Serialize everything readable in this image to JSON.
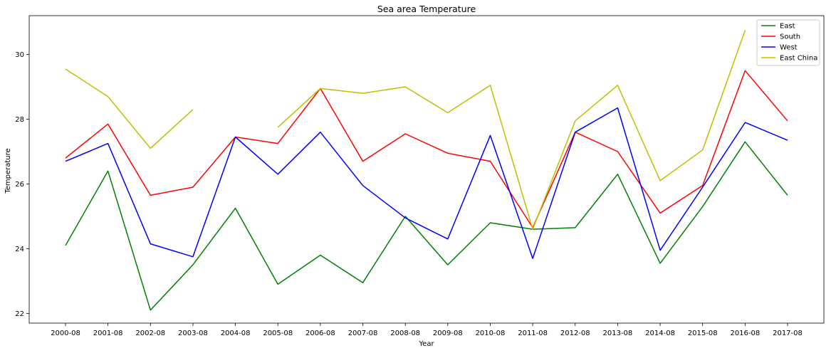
{
  "chart_data": {
    "type": "line",
    "title": "Sea area Temperature",
    "xlabel": "Year",
    "ylabel": "Temperature",
    "categories": [
      "2000-08",
      "2001-08",
      "2002-08",
      "2003-08",
      "2004-08",
      "2005-08",
      "2006-08",
      "2007-08",
      "2008-08",
      "2009-08",
      "2010-08",
      "2011-08",
      "2012-08",
      "2013-08",
      "2014-08",
      "2015-08",
      "2016-08",
      "2017-08"
    ],
    "ylim": [
      21.7,
      31.2
    ],
    "yticks": [
      22,
      24,
      26,
      28,
      30
    ],
    "grid": false,
    "legend_position": "top-right",
    "series": [
      {
        "name": "East",
        "color": "#008000",
        "values": [
          24.1,
          26.4,
          22.1,
          23.5,
          25.25,
          22.9,
          23.8,
          22.95,
          25.0,
          23.5,
          24.8,
          24.6,
          24.65,
          26.3,
          23.55,
          25.3,
          27.3,
          25.65
        ]
      },
      {
        "name": "South",
        "color": "#ff0000",
        "values": [
          26.8,
          27.85,
          25.65,
          25.9,
          27.45,
          27.25,
          28.95,
          26.7,
          27.55,
          26.95,
          26.7,
          24.65,
          27.6,
          27.0,
          25.1,
          25.95,
          29.5,
          27.95
        ]
      },
      {
        "name": "West",
        "color": "#0000ff",
        "values": [
          26.7,
          27.25,
          24.15,
          23.75,
          27.45,
          26.3,
          27.6,
          25.95,
          24.95,
          24.3,
          27.5,
          23.7,
          27.6,
          28.35,
          23.95,
          25.9,
          27.9,
          27.35
        ]
      },
      {
        "name": "East China",
        "color": "#bfbf00",
        "values": [
          29.55,
          28.7,
          27.1,
          28.3,
          null,
          27.75,
          28.95,
          28.8,
          29.0,
          28.2,
          29.05,
          24.6,
          27.95,
          29.05,
          26.1,
          27.05,
          30.75,
          null
        ]
      }
    ]
  }
}
